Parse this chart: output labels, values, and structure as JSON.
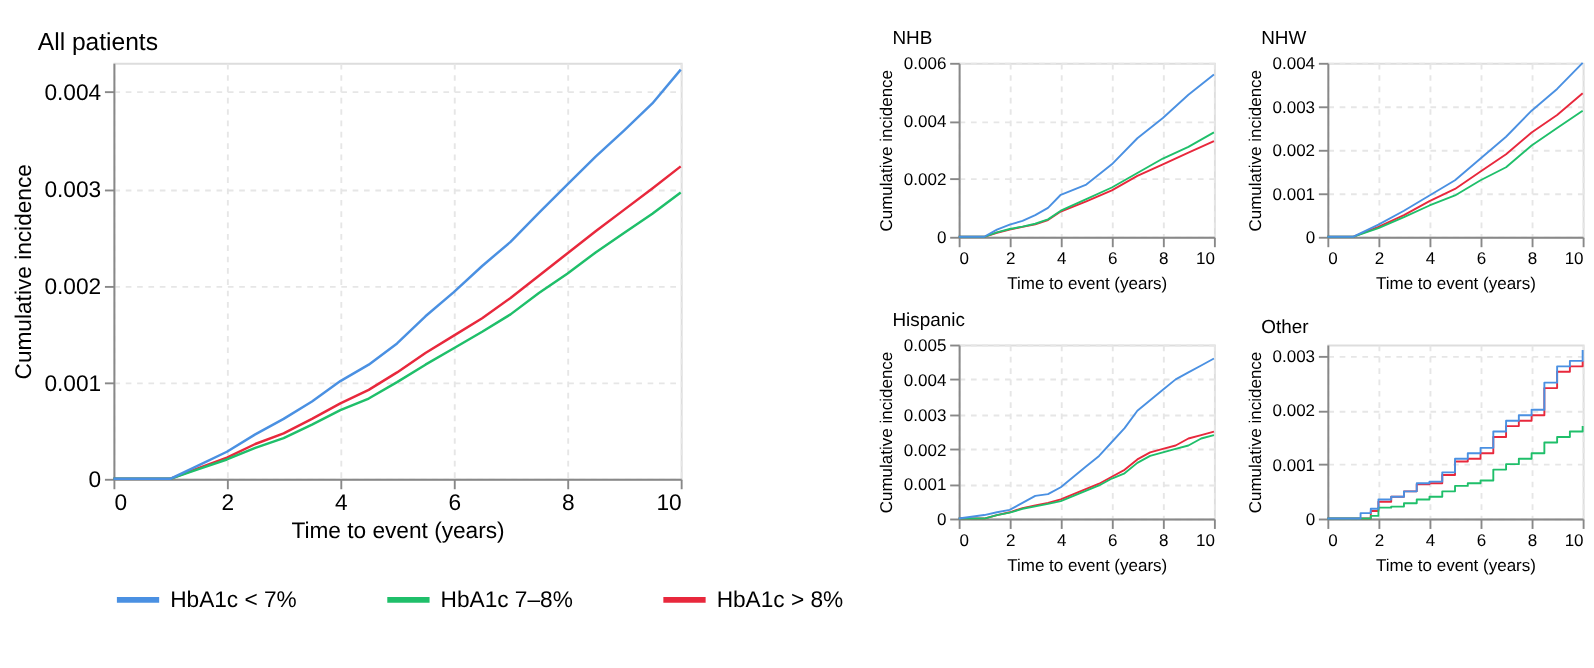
{
  "chart_data": [
    {
      "type": "line",
      "title": "All patients",
      "xlabel": "Time to event (years)",
      "ylabel": "Cumulative incidence",
      "x": [
        0,
        1,
        1.5,
        2,
        2.5,
        3,
        3.5,
        4,
        4.5,
        5,
        5.5,
        6,
        6.5,
        7,
        7.5,
        8,
        8.5,
        9,
        9.5,
        10
      ],
      "xlim": [
        0,
        10
      ],
      "xticks": [
        0,
        2,
        4,
        6,
        8,
        10
      ],
      "ylim": [
        0,
        0.0043
      ],
      "yticks": [
        0,
        0.001,
        0.002,
        0.003,
        0.004
      ],
      "grid": true,
      "legend": "bottom",
      "series": [
        {
          "name": "HbA1c < 7%",
          "color": "#4a90e2",
          "values": [
            0,
            0,
            0.00014,
            0.00028,
            0.00046,
            0.00062,
            0.0008,
            0.00101,
            0.00118,
            0.0014,
            0.00168,
            0.00193,
            0.0022,
            0.00245,
            0.00275,
            0.00304,
            0.00333,
            0.0036,
            0.00388,
            0.00423
          ]
        },
        {
          "name": "HbA1c 7–8%",
          "color": "#1fbf6a",
          "values": [
            0,
            0,
            0.0001,
            0.0002,
            0.00032,
            0.00042,
            0.00056,
            0.00071,
            0.00083,
            0.001,
            0.00118,
            0.00135,
            0.00152,
            0.0017,
            0.00192,
            0.00212,
            0.00234,
            0.00254,
            0.00274,
            0.00296
          ]
        },
        {
          "name": "HbA1c > 8%",
          "color": "#e8283c",
          "values": [
            0,
            0,
            0.00011,
            0.00022,
            0.00036,
            0.00047,
            0.00062,
            0.00078,
            0.00092,
            0.0011,
            0.0013,
            0.00148,
            0.00166,
            0.00187,
            0.0021,
            0.00233,
            0.00256,
            0.00278,
            0.003,
            0.00323
          ]
        }
      ]
    },
    {
      "type": "line",
      "title": "NHB",
      "xlabel": "Time to event (years)",
      "ylabel": "Cumulative incidence",
      "x": [
        0,
        1,
        1.5,
        2,
        2.5,
        3,
        3.5,
        4,
        5,
        6,
        7,
        8,
        9,
        10
      ],
      "xlim": [
        0,
        10
      ],
      "xticks": [
        0,
        2,
        4,
        6,
        8,
        10
      ],
      "ylim": [
        0,
        0.006
      ],
      "yticks": [
        0,
        0.002,
        0.004,
        0.006
      ],
      "grid": true,
      "series": [
        {
          "color": "#4a90e2",
          "values": [
            0,
            0,
            0.00025,
            0.00042,
            0.00055,
            0.00075,
            0.001,
            0.00145,
            0.0018,
            0.0025,
            0.0034,
            0.0041,
            0.0049,
            0.0056
          ]
        },
        {
          "color": "#1fbf6a",
          "values": [
            0,
            0,
            0.00015,
            0.00027,
            0.00035,
            0.00045,
            0.0006,
            0.0009,
            0.0013,
            0.0017,
            0.0022,
            0.0027,
            0.0031,
            0.0036
          ]
        },
        {
          "color": "#e8283c",
          "values": [
            0,
            0,
            0.00014,
            0.00025,
            0.00034,
            0.00043,
            0.00058,
            0.00087,
            0.00122,
            0.0016,
            0.0021,
            0.0025,
            0.0029,
            0.0033
          ]
        }
      ]
    },
    {
      "type": "line",
      "title": "NHW",
      "xlabel": "Time to event (years)",
      "ylabel": "Cumulative incidence",
      "x": [
        0,
        1,
        2,
        3,
        4,
        5,
        6,
        7,
        8,
        9,
        10
      ],
      "xlim": [
        0,
        10
      ],
      "xticks": [
        0,
        2,
        4,
        6,
        8,
        10
      ],
      "ylim": [
        0,
        0.004
      ],
      "yticks": [
        0,
        0.001,
        0.002,
        0.003,
        0.004
      ],
      "grid": true,
      "series": [
        {
          "color": "#4a90e2",
          "values": [
            0,
            0,
            0.00028,
            0.0006,
            0.00095,
            0.0013,
            0.0018,
            0.0023,
            0.0029,
            0.0034,
            0.004
          ]
        },
        {
          "color": "#1fbf6a",
          "values": [
            0,
            0,
            0.0002,
            0.00045,
            0.00072,
            0.00095,
            0.0013,
            0.0016,
            0.0021,
            0.0025,
            0.0029
          ]
        },
        {
          "color": "#e8283c",
          "values": [
            0,
            0,
            0.00023,
            0.0005,
            0.00082,
            0.0011,
            0.0015,
            0.0019,
            0.0024,
            0.0028,
            0.0033
          ]
        }
      ]
    },
    {
      "type": "line",
      "title": "Hispanic",
      "xlabel": "Time to event (years)",
      "ylabel": "Cumulative incidence",
      "x": [
        0,
        1,
        1.5,
        2,
        2.5,
        3,
        3.5,
        4,
        4.5,
        5,
        5.5,
        6,
        6.5,
        7,
        7.5,
        8,
        8.5,
        9,
        9.5,
        10
      ],
      "xlim": [
        0,
        10
      ],
      "xticks": [
        0,
        2,
        4,
        6,
        8,
        10
      ],
      "ylim": [
        0,
        0.005
      ],
      "yticks": [
        0,
        0.001,
        0.002,
        0.003,
        0.004,
        0.005
      ],
      "grid": true,
      "series": [
        {
          "color": "#4a90e2",
          "values": [
            0,
            0.0001,
            0.00018,
            0.00025,
            0.00045,
            0.00065,
            0.0007,
            0.0009,
            0.0012,
            0.0015,
            0.0018,
            0.0022,
            0.0026,
            0.0031,
            0.0034,
            0.0037,
            0.004,
            0.0042,
            0.0044,
            0.0046
          ]
        },
        {
          "color": "#1fbf6a",
          "values": [
            0,
            0,
            0.0001,
            0.00017,
            0.00028,
            0.00035,
            0.00042,
            0.0005,
            0.00065,
            0.0008,
            0.00095,
            0.00115,
            0.0013,
            0.0016,
            0.0018,
            0.0019,
            0.002,
            0.0021,
            0.0023,
            0.0024
          ]
        },
        {
          "color": "#e8283c",
          "values": [
            0,
            0,
            0.0001,
            0.00018,
            0.0003,
            0.00038,
            0.00045,
            0.00055,
            0.0007,
            0.00085,
            0.001,
            0.0012,
            0.0014,
            0.0017,
            0.0019,
            0.002,
            0.0021,
            0.0023,
            0.0024,
            0.0025
          ]
        }
      ]
    },
    {
      "type": "step",
      "title": "Other",
      "xlabel": "Time to event (years)",
      "ylabel": "Cumulative incidence",
      "x": [
        0,
        1.3,
        1.7,
        2,
        2.5,
        3,
        3.5,
        4,
        4.5,
        5,
        5.5,
        6,
        6.5,
        7,
        7.5,
        8,
        8.5,
        9,
        9.5,
        10
      ],
      "xlim": [
        0,
        10
      ],
      "xticks": [
        0,
        2,
        4,
        6,
        8,
        10
      ],
      "ylim": [
        0,
        0.0032
      ],
      "yticks": [
        0,
        0.001,
        0.002,
        0.003
      ],
      "grid": true,
      "series": [
        {
          "color": "#4a90e2",
          "values": [
            0,
            0.0001,
            0.00018,
            0.00035,
            0.0004,
            0.0005,
            0.00065,
            0.00068,
            0.00085,
            0.0011,
            0.0012,
            0.0013,
            0.0016,
            0.0018,
            0.0019,
            0.002,
            0.0025,
            0.0028,
            0.0029,
            0.0031
          ]
        },
        {
          "color": "#1fbf6a",
          "values": [
            0,
            0,
            5e-05,
            0.0002,
            0.00022,
            0.00028,
            0.00035,
            0.0004,
            0.0005,
            0.0006,
            0.00065,
            0.0007,
            0.0009,
            0.001,
            0.0011,
            0.0012,
            0.0014,
            0.0015,
            0.0016,
            0.0017
          ]
        },
        {
          "color": "#e8283c",
          "values": [
            0,
            0,
            0.00014,
            0.00031,
            0.0004,
            0.0005,
            0.00063,
            0.00065,
            0.0008,
            0.00105,
            0.0011,
            0.0012,
            0.0015,
            0.0017,
            0.0018,
            0.0019,
            0.0024,
            0.0027,
            0.0028,
            0.0029
          ]
        }
      ]
    }
  ]
}
